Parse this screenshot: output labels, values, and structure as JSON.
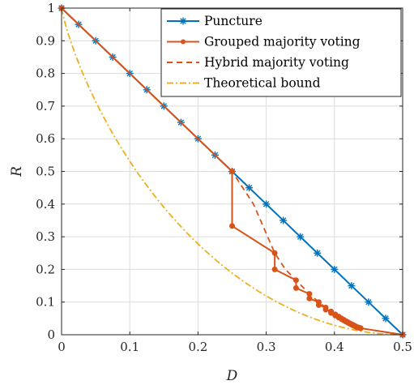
{
  "chart_data": {
    "type": "line",
    "xlabel": "D",
    "ylabel": "R",
    "xlim": [
      0,
      0.5
    ],
    "ylim": [
      0,
      1
    ],
    "x_ticks": [
      "0",
      "0.1",
      "0.2",
      "0.3",
      "0.4",
      "0.5"
    ],
    "y_ticks": [
      "0",
      "0.1",
      "0.2",
      "0.3",
      "0.4",
      "0.5",
      "0.6",
      "0.7",
      "0.8",
      "0.9",
      "1"
    ],
    "grid": true,
    "legend_position": "top-right",
    "series": [
      {
        "name": "Puncture",
        "color": "#0072BD",
        "line": "solid",
        "marker": "star",
        "points": [
          [
            0,
            1
          ],
          [
            0.025,
            0.95
          ],
          [
            0.05,
            0.9
          ],
          [
            0.075,
            0.85
          ],
          [
            0.1,
            0.8
          ],
          [
            0.125,
            0.75
          ],
          [
            0.15,
            0.7
          ],
          [
            0.175,
            0.65
          ],
          [
            0.2,
            0.6
          ],
          [
            0.225,
            0.55
          ],
          [
            0.25,
            0.5
          ],
          [
            0.275,
            0.45
          ],
          [
            0.3,
            0.4
          ],
          [
            0.325,
            0.35
          ],
          [
            0.35,
            0.3
          ],
          [
            0.375,
            0.25
          ],
          [
            0.4,
            0.2
          ],
          [
            0.425,
            0.15
          ],
          [
            0.45,
            0.1
          ],
          [
            0.475,
            0.05
          ],
          [
            0.5,
            0
          ]
        ]
      },
      {
        "name": "Grouped majority voting",
        "color": "#D95319",
        "line": "solid",
        "marker": "circle",
        "points": [
          [
            0,
            1
          ],
          [
            0.25,
            0.5
          ],
          [
            0.25,
            0.333
          ],
          [
            0.3125,
            0.25
          ],
          [
            0.3125,
            0.2
          ],
          [
            0.34375,
            0.167
          ],
          [
            0.34375,
            0.143
          ],
          [
            0.3633,
            0.125
          ],
          [
            0.3633,
            0.111
          ],
          [
            0.377,
            0.1
          ],
          [
            0.377,
            0.0909
          ],
          [
            0.3872,
            0.0833
          ],
          [
            0.3872,
            0.0769
          ],
          [
            0.395,
            0.0714
          ],
          [
            0.395,
            0.0667
          ],
          [
            0.4012,
            0.0625
          ],
          [
            0.4012,
            0.0588
          ],
          [
            0.4063,
            0.0556
          ],
          [
            0.4063,
            0.0526
          ],
          [
            0.4105,
            0.05
          ],
          [
            0.4105,
            0.0476
          ],
          [
            0.414,
            0.0455
          ],
          [
            0.414,
            0.0435
          ],
          [
            0.417,
            0.0417
          ],
          [
            0.417,
            0.04
          ],
          [
            0.4197,
            0.0385
          ],
          [
            0.4197,
            0.037
          ],
          [
            0.422,
            0.0357
          ],
          [
            0.422,
            0.0345
          ],
          [
            0.424,
            0.0333
          ],
          [
            0.424,
            0.0323
          ],
          [
            0.426,
            0.0313
          ],
          [
            0.426,
            0.0303
          ],
          [
            0.4276,
            0.0294
          ],
          [
            0.4276,
            0.0286
          ],
          [
            0.4291,
            0.0278
          ],
          [
            0.4291,
            0.027
          ],
          [
            0.4305,
            0.0263
          ],
          [
            0.4305,
            0.0256
          ],
          [
            0.4317,
            0.025
          ],
          [
            0.4317,
            0.0244
          ],
          [
            0.4328,
            0.0238
          ],
          [
            0.4328,
            0.0233
          ],
          [
            0.4338,
            0.0227
          ],
          [
            0.4348,
            0.0222
          ],
          [
            0.4357,
            0.0217
          ],
          [
            0.4365,
            0.0213
          ],
          [
            0.4373,
            0.0208
          ],
          [
            0.438,
            0.0204
          ],
          [
            0.4386,
            0.02
          ],
          [
            0.5,
            0
          ]
        ]
      },
      {
        "name": "Hybrid majority voting",
        "color": "#D95319",
        "line": "dashed",
        "marker": "none",
        "points": [
          [
            0,
            1
          ],
          [
            0.25,
            0.5
          ],
          [
            0.2813,
            0.4
          ],
          [
            0.3125,
            0.25
          ],
          [
            0.3281,
            0.2
          ],
          [
            0.3438,
            0.1667
          ],
          [
            0.3633,
            0.125
          ],
          [
            0.377,
            0.1
          ],
          [
            0.3872,
            0.0833
          ],
          [
            0.4012,
            0.0625
          ],
          [
            0.4105,
            0.05
          ],
          [
            0.417,
            0.0417
          ],
          [
            0.422,
            0.0357
          ],
          [
            0.426,
            0.0313
          ],
          [
            0.4291,
            0.0278
          ],
          [
            0.4317,
            0.025
          ],
          [
            0.4386,
            0.02
          ],
          [
            0.5,
            0
          ]
        ]
      },
      {
        "name": "Theoretical bound",
        "color": "#EDB120",
        "line": "dashdot",
        "marker": "none",
        "points": [
          [
            0,
            1
          ],
          [
            0.001,
            0.9886
          ],
          [
            0.005,
            0.9546
          ],
          [
            0.01,
            0.9192
          ],
          [
            0.02,
            0.8586
          ],
          [
            0.03,
            0.8056
          ],
          [
            0.04,
            0.7577
          ],
          [
            0.05,
            0.7136
          ],
          [
            0.06,
            0.6726
          ],
          [
            0.07,
            0.634
          ],
          [
            0.08,
            0.5978
          ],
          [
            0.09,
            0.5636
          ],
          [
            0.1,
            0.531
          ],
          [
            0.11,
            0.5
          ],
          [
            0.12,
            0.4706
          ],
          [
            0.13,
            0.4426
          ],
          [
            0.14,
            0.4157
          ],
          [
            0.15,
            0.3902
          ],
          [
            0.16,
            0.3657
          ],
          [
            0.17,
            0.3423
          ],
          [
            0.18,
            0.3199
          ],
          [
            0.19,
            0.2985
          ],
          [
            0.2,
            0.2781
          ],
          [
            0.21,
            0.2585
          ],
          [
            0.22,
            0.2398
          ],
          [
            0.23,
            0.222
          ],
          [
            0.24,
            0.2049
          ],
          [
            0.25,
            0.1887
          ],
          [
            0.26,
            0.1733
          ],
          [
            0.27,
            0.1586
          ],
          [
            0.28,
            0.1446
          ],
          [
            0.29,
            0.1313
          ],
          [
            0.3,
            0.1187
          ],
          [
            0.31,
            0.1068
          ],
          [
            0.32,
            0.0956
          ],
          [
            0.33,
            0.0851
          ],
          [
            0.34,
            0.0752
          ],
          [
            0.35,
            0.066
          ],
          [
            0.36,
            0.0573
          ],
          [
            0.37,
            0.0493
          ],
          [
            0.38,
            0.0419
          ],
          [
            0.39,
            0.0352
          ],
          [
            0.4,
            0.029
          ],
          [
            0.41,
            0.0234
          ],
          [
            0.42,
            0.0185
          ],
          [
            0.43,
            0.0141
          ],
          [
            0.44,
            0.0104
          ],
          [
            0.45,
            0.0072
          ],
          [
            0.46,
            0.0046
          ],
          [
            0.47,
            0.0026
          ],
          [
            0.48,
            0.0012
          ],
          [
            0.49,
            0.0003
          ],
          [
            0.5,
            0
          ]
        ]
      }
    ]
  }
}
